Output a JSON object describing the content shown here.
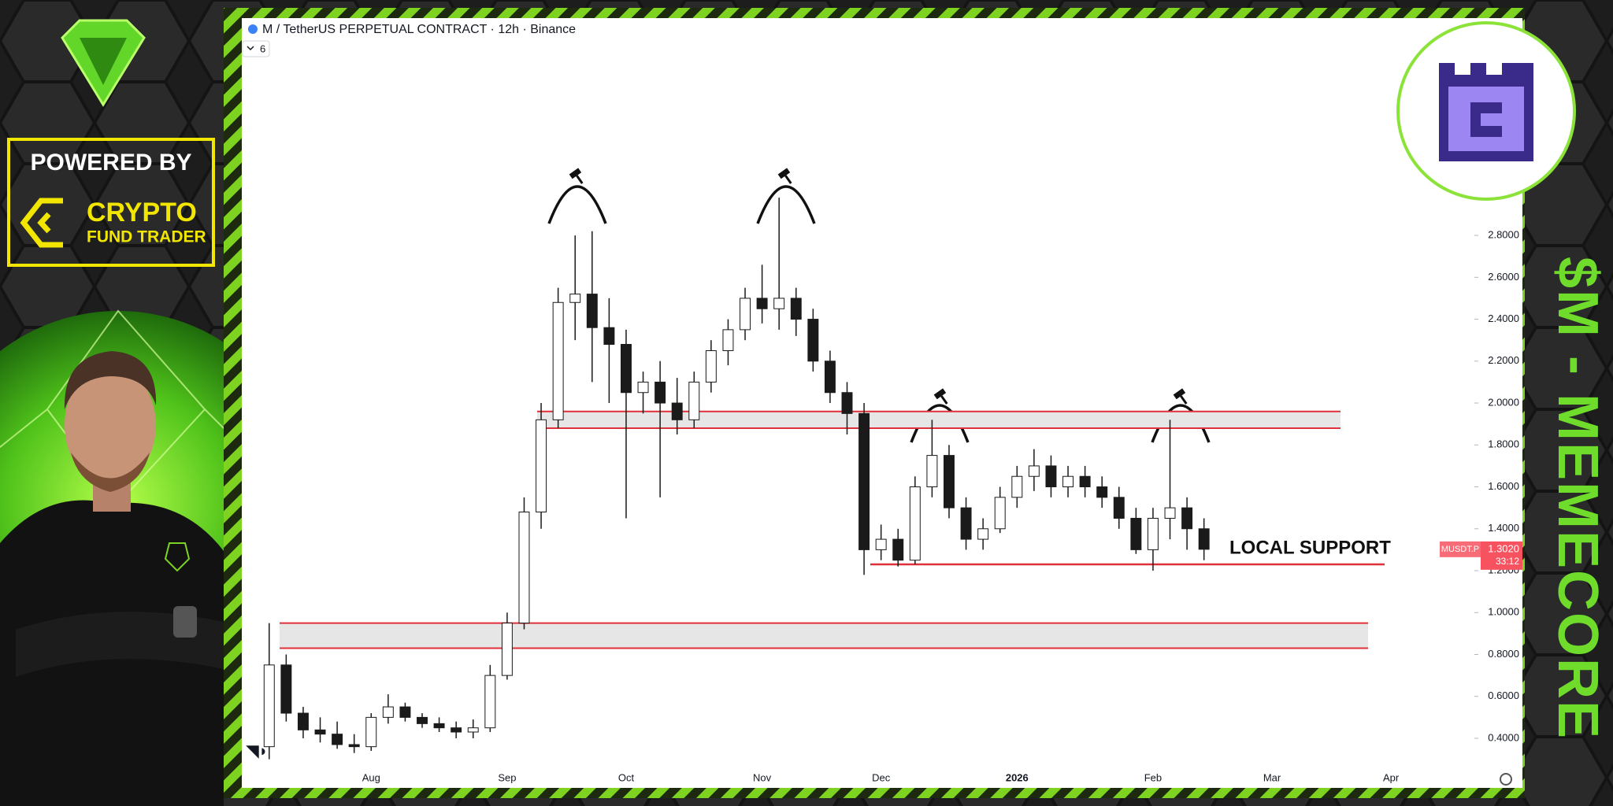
{
  "chart_data": {
    "type": "candlestick",
    "title": "M / TetherUS PERPETUAL CONTRACT · 12h · Binance",
    "indicator_count": 6,
    "categories": [
      null,
      null,
      null,
      null,
      null,
      null,
      "Aug",
      null,
      null,
      null,
      null,
      null,
      null,
      null,
      "Sep",
      null,
      null,
      null,
      null,
      null,
      null,
      "Oct",
      null,
      null,
      null,
      null,
      null,
      null,
      null,
      "Nov",
      null,
      null,
      null,
      null,
      null,
      null,
      "Dec",
      null,
      null,
      null,
      null,
      null,
      null,
      null,
      "2026",
      null,
      null,
      null,
      null,
      null,
      null,
      null,
      "Feb",
      null,
      null,
      null,
      null,
      null,
      null,
      "Mar",
      null,
      null,
      null,
      null,
      null,
      null,
      "Apr",
      null,
      null,
      null,
      null
    ],
    "open": [
      0.36,
      0.75,
      0.52,
      0.44,
      0.42,
      0.37,
      0.36,
      0.5,
      0.55,
      0.5,
      0.47,
      0.45,
      0.43,
      0.45,
      0.7,
      0.95,
      1.48,
      1.92,
      2.48,
      2.52,
      2.36,
      2.28,
      2.05,
      2.1,
      2.0,
      1.92,
      2.1,
      2.25,
      2.35,
      2.5,
      2.45,
      2.5,
      2.4,
      2.2,
      2.05,
      1.95,
      1.3,
      1.35,
      1.25,
      1.6,
      1.75,
      1.5,
      1.35,
      1.4,
      1.55,
      1.65,
      1.7,
      1.6,
      1.65,
      1.6,
      1.55,
      1.45,
      1.3,
      1.45,
      1.5,
      1.4,
      null,
      null,
      null,
      null,
      null,
      null,
      null,
      null,
      null,
      null,
      null,
      null,
      null,
      null,
      null
    ],
    "high": [
      0.95,
      0.8,
      0.55,
      0.5,
      0.48,
      0.42,
      0.52,
      0.61,
      0.57,
      0.52,
      0.5,
      0.48,
      0.49,
      0.75,
      1.0,
      1.55,
      2.0,
      2.55,
      2.8,
      2.82,
      2.5,
      2.35,
      2.15,
      2.2,
      2.12,
      2.15,
      2.3,
      2.4,
      2.55,
      2.66,
      2.98,
      2.55,
      2.45,
      2.25,
      2.1,
      2.0,
      1.42,
      1.4,
      1.65,
      1.92,
      1.8,
      1.55,
      1.45,
      1.6,
      1.7,
      1.78,
      1.75,
      1.7,
      1.7,
      1.65,
      1.6,
      1.5,
      1.5,
      1.92,
      1.55,
      1.45,
      null,
      null,
      null,
      null,
      null,
      null,
      null,
      null,
      null,
      null,
      null,
      null,
      null,
      null,
      null
    ],
    "low": [
      0.3,
      0.48,
      0.4,
      0.38,
      0.35,
      0.33,
      0.34,
      0.47,
      0.48,
      0.45,
      0.43,
      0.4,
      0.4,
      0.43,
      0.68,
      0.92,
      1.4,
      1.88,
      2.3,
      2.1,
      2.0,
      1.45,
      1.95,
      1.55,
      1.85,
      1.88,
      2.05,
      2.18,
      2.3,
      2.38,
      2.35,
      2.32,
      2.15,
      2.0,
      1.85,
      1.18,
      1.25,
      1.22,
      1.23,
      1.55,
      1.45,
      1.3,
      1.3,
      1.38,
      1.5,
      1.58,
      1.55,
      1.55,
      1.55,
      1.5,
      1.4,
      1.28,
      1.2,
      1.35,
      1.3,
      1.25,
      null,
      null,
      null,
      null,
      null,
      null,
      null,
      null,
      null,
      null,
      null,
      null,
      null,
      null,
      null
    ],
    "close": [
      0.75,
      0.52,
      0.44,
      0.42,
      0.37,
      0.36,
      0.5,
      0.55,
      0.5,
      0.47,
      0.45,
      0.43,
      0.45,
      0.7,
      0.95,
      1.48,
      1.92,
      2.48,
      2.52,
      2.36,
      2.28,
      2.05,
      2.1,
      2.0,
      1.92,
      2.1,
      2.25,
      2.35,
      2.5,
      2.45,
      2.5,
      2.4,
      2.2,
      2.05,
      1.95,
      1.3,
      1.35,
      1.25,
      1.6,
      1.75,
      1.5,
      1.35,
      1.4,
      1.55,
      1.65,
      1.7,
      1.6,
      1.65,
      1.6,
      1.55,
      1.45,
      1.3,
      1.45,
      1.5,
      1.4,
      1.302,
      null,
      null,
      null,
      null,
      null,
      null,
      null,
      null,
      null,
      null,
      null,
      null,
      null,
      null,
      null
    ],
    "up_color": "#ffffff",
    "down_color": "#1a1a1a",
    "wick_color": "#1a1a1a",
    "ylim": [
      0.261,
      3.837
    ],
    "yticks": [
      {
        "value": 0.4,
        "label": "0.4000"
      },
      {
        "value": 0.6,
        "label": "0.6000"
      },
      {
        "value": 0.8,
        "label": "0.8000"
      },
      {
        "value": 1.0,
        "label": "1.0000"
      },
      {
        "value": 1.2,
        "label": "1.2000"
      },
      {
        "value": 1.4,
        "label": "1.4000"
      },
      {
        "value": 1.6,
        "label": "1.6000"
      },
      {
        "value": 1.8,
        "label": "1.8000"
      },
      {
        "value": 2.0,
        "label": "2.0000"
      },
      {
        "value": 2.2,
        "label": "2.2000"
      },
      {
        "value": 2.4,
        "label": "2.4000"
      },
      {
        "value": 2.6,
        "label": "2.6000"
      },
      {
        "value": 2.8,
        "label": "2.8000"
      }
    ],
    "zones": [
      {
        "low": 1.88,
        "high": 1.96
      },
      {
        "low": 0.83,
        "high": 0.95
      }
    ],
    "zone_color": "#e0303a",
    "support": 1.23,
    "annotation": "LOCAL SUPPORT",
    "last_price": {
      "name": "MUSDT.P",
      "value": 1.302,
      "value_label": "1.3020",
      "countdown": "33:12",
      "color": "#f7525f"
    }
  },
  "branding": {
    "powered_by": "POWERED BY",
    "brand_name": "CRYPTO",
    "brand_sub": "FUND TRADER",
    "headline": "$M - MEMECORE"
  }
}
